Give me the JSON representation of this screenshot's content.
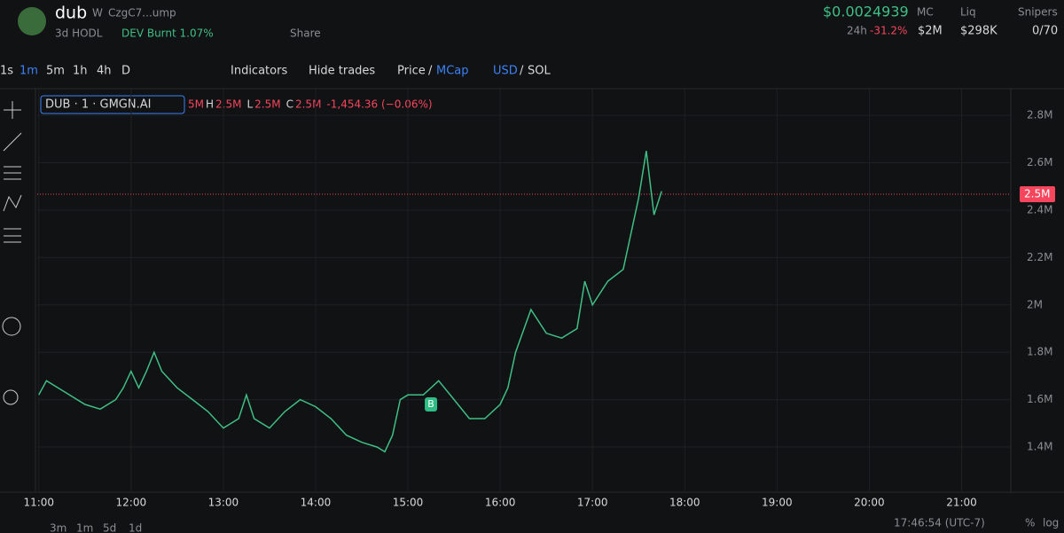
{
  "header": {
    "name": "dub",
    "badge": "W",
    "address": "CzgC7...ump",
    "age": "3d HODL",
    "dev": "DEV Burnt 1.07%",
    "share": "Share",
    "price": "$0.0024939",
    "change_label": "24h",
    "change": "-31.2%",
    "mc_label": "MC",
    "mc": "$2M",
    "liq_label": "Liq",
    "liq": "$298K",
    "snipers_label": "Snipers",
    "snipers": "0/70"
  },
  "toolbar": {
    "intervals": [
      "1s",
      "1m",
      "5m",
      "1h",
      "4h",
      "D"
    ],
    "indicators": "Indicators",
    "hide_trades": "Hide trades",
    "price": "Price",
    "slash": "/",
    "mcap": "MCap",
    "usd": "USD",
    "sol": "SOL"
  },
  "legend": {
    "symbol": "DUB · 1 · GMGN.AI",
    "ohlc": [
      "5M",
      "H",
      "2.5M",
      "L",
      "2.5M",
      "C",
      "2.5M",
      "-1,454.36 (−0.06%)"
    ]
  },
  "footer": {
    "ranges": [
      "3m",
      "1m",
      "5d",
      "1d"
    ],
    "clock": "17:46:54 (UTC-7)",
    "percent": "%",
    "log": "log"
  },
  "chart_data": {
    "type": "line",
    "color": "#3fbf86",
    "x": [
      "11:00",
      "11:05",
      "11:15",
      "11:30",
      "11:40",
      "11:50",
      "11:55",
      "12:00",
      "12:05",
      "12:10",
      "12:15",
      "12:20",
      "12:30",
      "12:40",
      "12:50",
      "13:00",
      "13:10",
      "13:15",
      "13:20",
      "13:30",
      "13:40",
      "13:50",
      "14:00",
      "14:10",
      "14:20",
      "14:30",
      "14:40",
      "14:45",
      "14:50",
      "14:55",
      "15:00",
      "15:10",
      "15:20",
      "15:30",
      "15:40",
      "15:50",
      "16:00",
      "16:05",
      "16:10",
      "16:20",
      "16:30",
      "16:40",
      "16:50",
      "16:55",
      "17:00",
      "17:10",
      "17:20",
      "17:30",
      "17:35",
      "17:40",
      "17:45"
    ],
    "values": [
      1620000,
      1680000,
      1640000,
      1580000,
      1560000,
      1600000,
      1650000,
      1720000,
      1650000,
      1720000,
      1800000,
      1720000,
      1650000,
      1600000,
      1550000,
      1480000,
      1520000,
      1620000,
      1520000,
      1480000,
      1550000,
      1600000,
      1570000,
      1520000,
      1450000,
      1420000,
      1400000,
      1380000,
      1450000,
      1600000,
      1620000,
      1620000,
      1680000,
      1600000,
      1520000,
      1520000,
      1580000,
      1650000,
      1800000,
      1980000,
      1880000,
      1860000,
      1900000,
      2100000,
      2000000,
      2100000,
      2150000,
      2450000,
      2650000,
      2380000,
      2480000
    ],
    "xlim": [
      "10:59",
      "21:32"
    ],
    "xticks": [
      "11:00",
      "12:00",
      "13:00",
      "14:00",
      "15:00",
      "16:00",
      "17:00",
      "18:00",
      "19:00",
      "20:00",
      "21:00"
    ],
    "ylim": [
      1228000,
      2894000
    ],
    "yticks": [
      {
        "value": 1400000,
        "label": "1.4M"
      },
      {
        "value": 1600000,
        "label": "1.6M"
      },
      {
        "value": 1800000,
        "label": "1.8M"
      },
      {
        "value": 2000000,
        "label": "2M"
      },
      {
        "value": 2200000,
        "label": "2.2M"
      },
      {
        "value": 2400000,
        "label": "2.4M"
      },
      {
        "value": 2600000,
        "label": "2.6M"
      },
      {
        "value": 2800000,
        "label": "2.8M"
      }
    ],
    "grid": true,
    "current_price": {
      "value": 2467000,
      "label": "2.5M"
    },
    "annotation": {
      "x": "15:15",
      "value": 1580000,
      "label": "B"
    }
  }
}
